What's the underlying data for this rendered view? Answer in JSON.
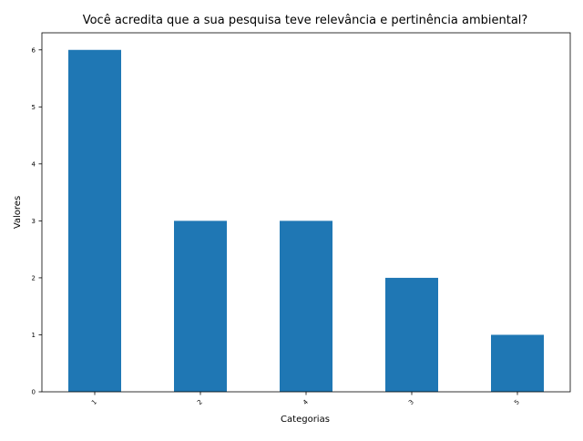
{
  "chart_data": {
    "type": "bar",
    "title": "Você acredita que a sua pesquisa teve relevância e pertinência ambiental?",
    "xlabel": "Categorias",
    "ylabel": "Valores",
    "categories": [
      "1",
      "2",
      "4",
      "3",
      "5"
    ],
    "values": [
      6,
      3,
      3,
      2,
      1
    ],
    "ylim": [
      0,
      6.3
    ],
    "yticks": [
      0,
      1,
      2,
      3,
      4,
      5,
      6
    ],
    "grid": false,
    "legend": "none",
    "bar_color": "#1f77b4"
  }
}
